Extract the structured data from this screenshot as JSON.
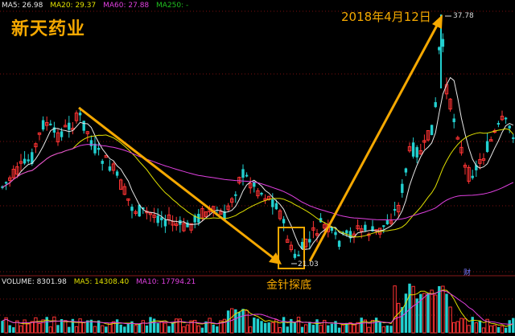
{
  "header": {
    "ma_items": [
      {
        "label": "MA5: 26.98",
        "color": "#e8e8e8"
      },
      {
        "label": "MA20: 29.37",
        "color": "#e0e000"
      },
      {
        "label": "MA60: 27.88",
        "color": "#e040e0"
      },
      {
        "label": "MA250: -",
        "color": "#20c020"
      }
    ]
  },
  "stock_name": "新天药业",
  "annotations": {
    "date_note": "2018年4月12日",
    "high_price": "37.78",
    "low_price": "21.03",
    "pin_bottom_note": "金针探底",
    "cai_badge": "财"
  },
  "volume_header": {
    "items": [
      {
        "label": "VOLUME: 8301.98",
        "color": "#e8e8e8"
      },
      {
        "label": "MA5: 14308.40",
        "color": "#e0e000"
      },
      {
        "label": "MA10: 17794.21",
        "color": "#e040e0"
      }
    ]
  },
  "colors": {
    "up": "#ff3333",
    "down": "#22d0d0",
    "annotation": "#f5a800",
    "ma5": "#e8e8e8",
    "ma20": "#e0e000",
    "ma60": "#e040e0",
    "grid": "#7a1010"
  }
}
